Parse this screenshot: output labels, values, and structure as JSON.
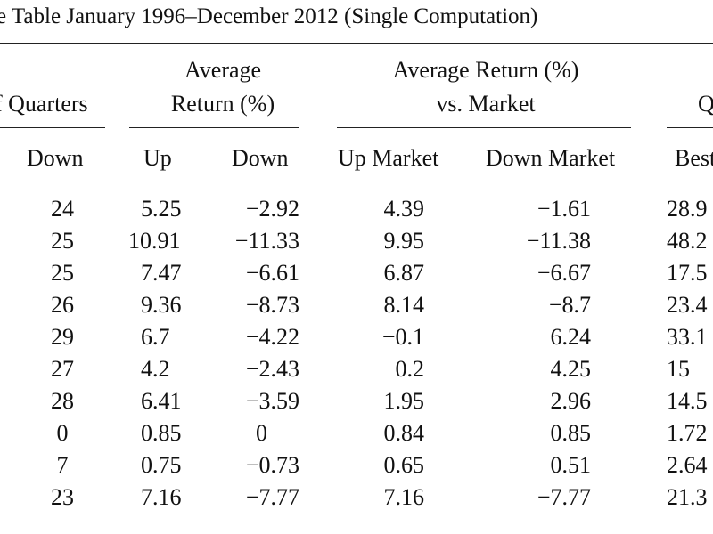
{
  "table": {
    "title": "e Table January 1996–December 2012 (Single Computation)",
    "group_headers": {
      "quarters": "f Quarters",
      "avg_return_line1": "Average",
      "avg_return_line2": "Return (%)",
      "vs_market_line1": "Average Return (%)",
      "vs_market_line2": "vs. Market",
      "quarter_cut": "Q"
    },
    "column_headers": {
      "down_count": "Down",
      "up": "Up",
      "down": "Down",
      "up_market": "Up Market",
      "down_market": "Down Market",
      "best": "Best"
    },
    "rows": [
      {
        "down_count": "24",
        "up": "5.25",
        "down": "−2.92",
        "up_market": "4.39",
        "down_market": "−1.61",
        "best": "28.9"
      },
      {
        "down_count": "25",
        "up": "10.91",
        "down": "−11.33",
        "up_market": "9.95",
        "down_market": "−11.38",
        "best": "48.2"
      },
      {
        "down_count": "25",
        "up": "7.47",
        "down": "−6.61",
        "up_market": "6.87",
        "down_market": "−6.67",
        "best": "17.5"
      },
      {
        "down_count": "26",
        "up": "9.36",
        "down": "−8.73",
        "up_market": "8.14",
        "down_market": "−8.7",
        "best": "23.4"
      },
      {
        "down_count": "29",
        "up": "6.7",
        "down": "−4.22",
        "up_market": "−0.1",
        "down_market": "6.24",
        "best": "33.1"
      },
      {
        "down_count": "27",
        "up": "4.2",
        "down": "−2.43",
        "up_market": "0.2",
        "down_market": "4.25",
        "best": "15"
      },
      {
        "down_count": "28",
        "up": "6.41",
        "down": "−3.59",
        "up_market": "1.95",
        "down_market": "2.96",
        "best": "14.5"
      },
      {
        "down_count": "0",
        "up": "0.85",
        "down": "0",
        "up_market": "0.84",
        "down_market": "0.85",
        "best": "1.72"
      },
      {
        "down_count": "7",
        "up": "0.75",
        "down": "−0.73",
        "up_market": "0.65",
        "down_market": "0.51",
        "best": "2.64"
      },
      {
        "down_count": "23",
        "up": "7.16",
        "down": "−7.77",
        "up_market": "7.16",
        "down_market": "−7.77",
        "best": "21.3"
      }
    ]
  }
}
